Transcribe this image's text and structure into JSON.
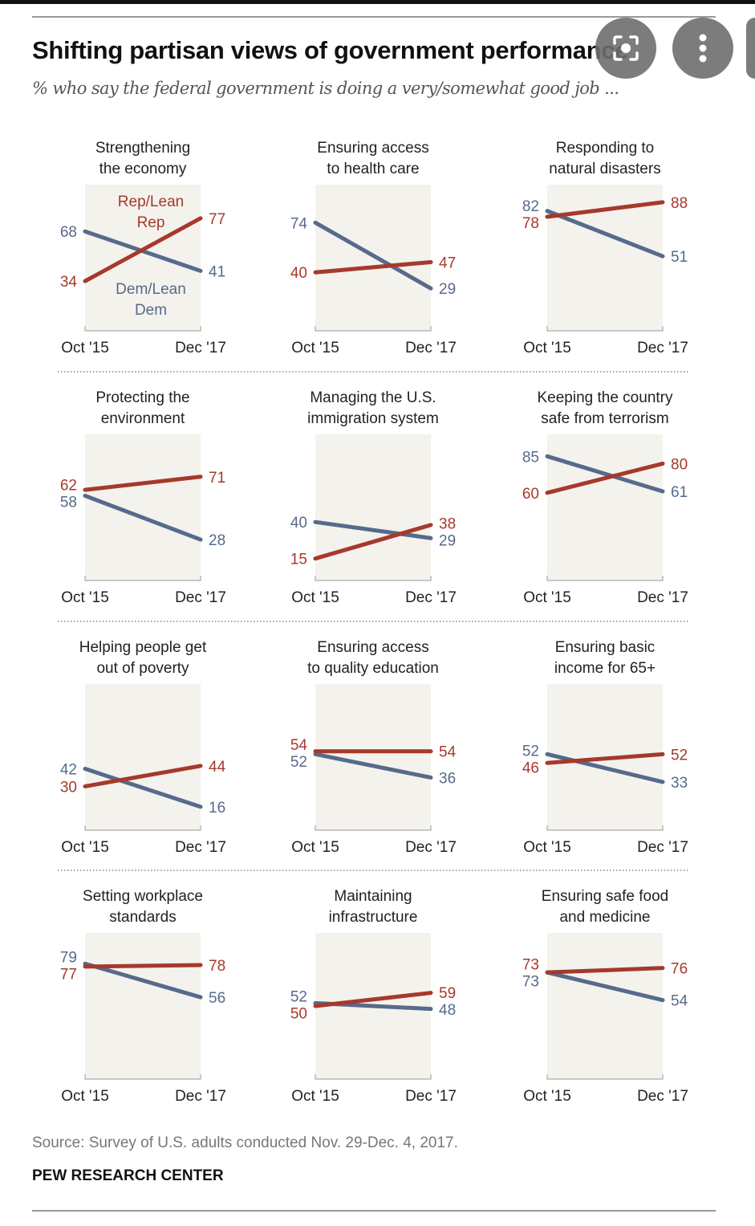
{
  "title": "Shifting partisan views of government performance",
  "subtitle": "% who say the federal government is doing a very/somewhat good job ...",
  "source": "Source: Survey of U.S. adults conducted Nov. 29-Dec. 4, 2017.",
  "brand": "PEW RESEARCH CENTER",
  "overlay_buttons": [
    {
      "icon": "lens-search-icon"
    },
    {
      "icon": "more-vertical-icon"
    }
  ],
  "colors": {
    "rep": "#a6392c",
    "dem": "#566a8c",
    "panel_bg": "#f4f2ec",
    "text": "#222222"
  },
  "chart_data": {
    "type": "line",
    "subtype": "slope-small-multiples",
    "x": [
      "Oct '15",
      "Dec '17"
    ],
    "ylim": [
      0,
      100
    ],
    "grid": false,
    "series_labels": {
      "rep": "Rep/Lean Rep",
      "dem": "Dem/Lean Dem"
    },
    "panels": [
      {
        "title": [
          "Strengthening",
          "the economy"
        ],
        "rep": [
          34,
          77
        ],
        "dem": [
          68,
          41
        ],
        "show_legend": true
      },
      {
        "title": [
          "Ensuring access",
          "to health care"
        ],
        "rep": [
          40,
          47
        ],
        "dem": [
          74,
          29
        ]
      },
      {
        "title": [
          "Responding to",
          "natural disasters"
        ],
        "rep": [
          78,
          88
        ],
        "dem": [
          82,
          51
        ]
      },
      {
        "title": [
          "Protecting the",
          "environment"
        ],
        "rep": [
          62,
          71
        ],
        "dem": [
          58,
          28
        ]
      },
      {
        "title": [
          "Managing the U.S.",
          "immigration system"
        ],
        "rep": [
          15,
          38
        ],
        "dem": [
          40,
          29
        ]
      },
      {
        "title": [
          "Keeping the country",
          "safe from terrorism"
        ],
        "rep": [
          60,
          80
        ],
        "dem": [
          85,
          61
        ]
      },
      {
        "title": [
          "Helping people get",
          "out of poverty"
        ],
        "rep": [
          30,
          44
        ],
        "dem": [
          42,
          16
        ]
      },
      {
        "title": [
          "Ensuring access",
          "to quality education"
        ],
        "rep": [
          54,
          54
        ],
        "dem": [
          52,
          36
        ]
      },
      {
        "title": [
          "Ensuring basic",
          "income for 65+"
        ],
        "rep": [
          46,
          52
        ],
        "dem": [
          52,
          33
        ]
      },
      {
        "title": [
          "Setting workplace",
          "standards"
        ],
        "rep": [
          77,
          78
        ],
        "dem": [
          79,
          56
        ]
      },
      {
        "title": [
          "Maintaining",
          "infrastructure"
        ],
        "rep": [
          50,
          59
        ],
        "dem": [
          52,
          48
        ]
      },
      {
        "title": [
          "Ensuring safe food",
          "and medicine"
        ],
        "rep": [
          73,
          76
        ],
        "dem": [
          73,
          54
        ]
      }
    ]
  }
}
